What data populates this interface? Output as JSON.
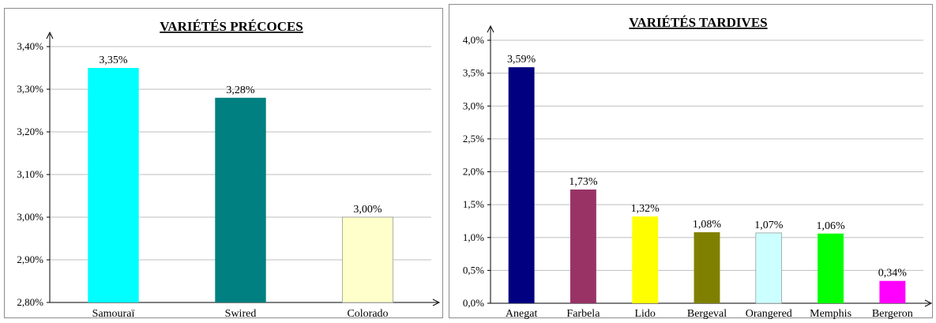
{
  "chart_data": [
    {
      "type": "bar",
      "title": "VARIÉTÉS PRÉCOCES",
      "categories": [
        "Samouraï",
        "Swired",
        "Colorado"
      ],
      "values": [
        3.35,
        3.28,
        3.0
      ],
      "value_labels": [
        "3,35%",
        "3,28%",
        "3,00%"
      ],
      "colors": [
        "#00ffff",
        "#008080",
        "#ffffcc"
      ],
      "ylim": [
        2.8,
        3.4
      ],
      "yticks": [
        2.8,
        2.9,
        3.0,
        3.1,
        3.2,
        3.3,
        3.4
      ],
      "ytick_labels": [
        "2,80%",
        "2,90%",
        "3,00%",
        "3,10%",
        "3,20%",
        "3,30%",
        "3,40%"
      ],
      "grid": true
    },
    {
      "type": "bar",
      "title": "VARIÉTÉS TARDIVES",
      "categories": [
        "Anegat",
        "Farbela",
        "Lido",
        "Bergeval",
        "Orangered",
        "Memphis",
        "Bergeron"
      ],
      "values": [
        3.59,
        1.73,
        1.32,
        1.08,
        1.07,
        1.06,
        0.34
      ],
      "value_labels": [
        "3,59%",
        "1,73%",
        "1,32%",
        "1,08%",
        "1,07%",
        "1,06%",
        "0,34%"
      ],
      "colors": [
        "#000080",
        "#993366",
        "#ffff00",
        "#808000",
        "#ccffff",
        "#00ff00",
        "#ff00ff"
      ],
      "ylim": [
        0,
        4.0
      ],
      "yticks": [
        0,
        0.5,
        1.0,
        1.5,
        2.0,
        2.5,
        3.0,
        3.5,
        4.0
      ],
      "ytick_labels": [
        "0,0%",
        "0,5%",
        "1,0%",
        "1,5%",
        "2,0%",
        "2,5%",
        "3,0%",
        "3,5%",
        "4,0%"
      ],
      "grid": true
    }
  ]
}
